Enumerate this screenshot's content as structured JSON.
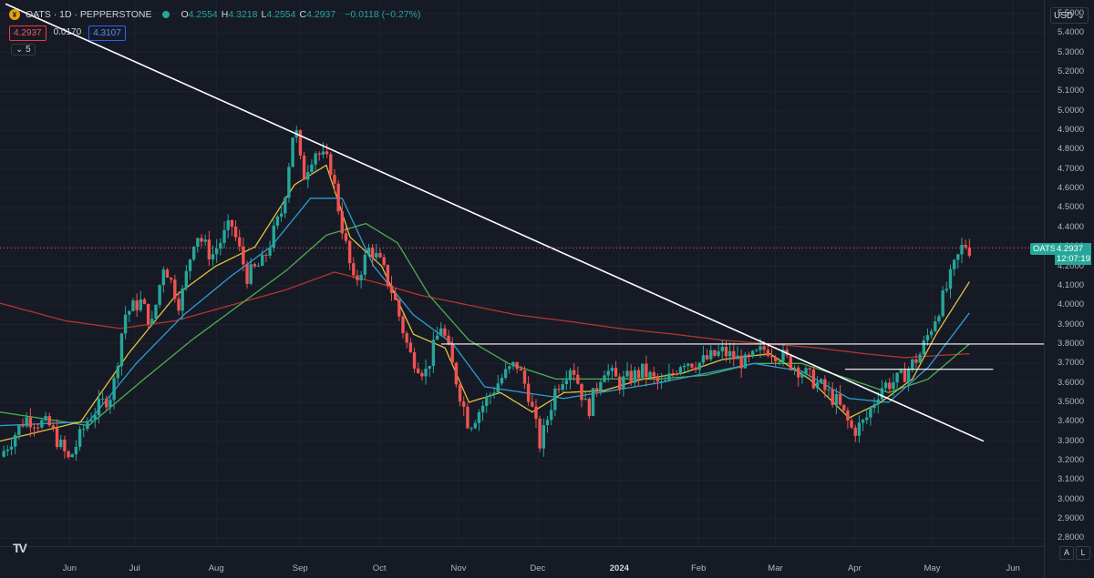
{
  "header": {
    "symbol_line": "OATS · 1D · PEPPERSTONE",
    "icon": "oats-coin-icon",
    "ohlc": [
      {
        "k": "O",
        "v": "4.2554"
      },
      {
        "k": "H",
        "v": "4.3218"
      },
      {
        "k": "L",
        "v": "4.2554"
      },
      {
        "k": "C",
        "v": "4.2937"
      }
    ],
    "change": "−0.0118 (−0.27%)",
    "bid": "4.2937",
    "spread": "0.0170",
    "ask": "4.3107",
    "indicators_collapsed_label": "5"
  },
  "currency": "USD",
  "last_price": {
    "symbol": "OATS",
    "price": "4.2937",
    "countdown": "12:07:19"
  },
  "axis_buttons": {
    "auto": "A",
    "log": "L"
  },
  "colors": {
    "background": "#161a25",
    "up": "#26a69a",
    "down": "#ef5350",
    "ma_fast": "#e3c23a",
    "ma_mid": "#2a9fd6",
    "ma_slow": "#4caf50",
    "ma_long": "#b5342f"
  },
  "chart_data": {
    "type": "candlestick",
    "title": "OATS · 1D · PEPPERSTONE",
    "y_ticks": [
      "5.5000",
      "5.4000",
      "5.3000",
      "5.2000",
      "5.1000",
      "5.0000",
      "4.9000",
      "4.8000",
      "4.7000",
      "4.6000",
      "4.5000",
      "4.4000",
      "4.3000",
      "4.2000",
      "4.1000",
      "4.0000",
      "3.9000",
      "3.8000",
      "3.7000",
      "3.6000",
      "3.5000",
      "3.4000",
      "3.3000",
      "3.2000",
      "3.1000",
      "3.0000",
      "2.9000",
      "2.8000"
    ],
    "ylim": [
      2.76,
      5.57
    ],
    "x_ticks": [
      {
        "label": "Jun",
        "t": 0.06
      },
      {
        "label": "Jul",
        "t": 0.88
      },
      {
        "label": "Aug",
        "t": 1.91
      },
      {
        "label": "Sep",
        "t": 2.97
      },
      {
        "label": "Oct",
        "t": 3.97
      },
      {
        "label": "Nov",
        "t": 4.97
      },
      {
        "label": "Dec",
        "t": 5.97
      },
      {
        "label": "2024",
        "t": 7.0,
        "bold": true
      },
      {
        "label": "Feb",
        "t": 8.0
      },
      {
        "label": "Mar",
        "t": 8.97
      },
      {
        "label": "Apr",
        "t": 9.97
      },
      {
        "label": "May",
        "t": 10.95
      },
      {
        "label": "Jun",
        "t": 11.97
      }
    ],
    "xlim": [
      -0.82,
      12.36
    ],
    "price_path": [
      [
        -0.82,
        3.22
      ],
      [
        -0.5,
        3.42
      ],
      [
        -0.2,
        3.38
      ],
      [
        0.05,
        3.2
      ],
      [
        0.3,
        3.42
      ],
      [
        0.6,
        3.55
      ],
      [
        0.75,
        3.95
      ],
      [
        0.95,
        4.02
      ],
      [
        1.1,
        3.9
      ],
      [
        1.25,
        4.22
      ],
      [
        1.45,
        4.0
      ],
      [
        1.65,
        4.38
      ],
      [
        1.85,
        4.25
      ],
      [
        2.1,
        4.42
      ],
      [
        2.3,
        4.15
      ],
      [
        2.5,
        4.22
      ],
      [
        2.75,
        4.5
      ],
      [
        2.9,
        4.95
      ],
      [
        3.0,
        4.65
      ],
      [
        3.15,
        4.8
      ],
      [
        3.35,
        4.72
      ],
      [
        3.5,
        4.4
      ],
      [
        3.65,
        4.1
      ],
      [
        3.85,
        4.3
      ],
      [
        4.0,
        4.2
      ],
      [
        4.15,
        4.05
      ],
      [
        4.35,
        3.75
      ],
      [
        4.55,
        3.65
      ],
      [
        4.75,
        3.9
      ],
      [
        4.95,
        3.6
      ],
      [
        5.1,
        3.38
      ],
      [
        5.3,
        3.5
      ],
      [
        5.5,
        3.62
      ],
      [
        5.7,
        3.7
      ],
      [
        5.85,
        3.55
      ],
      [
        6.0,
        3.28
      ],
      [
        6.2,
        3.58
      ],
      [
        6.4,
        3.7
      ],
      [
        6.6,
        3.45
      ],
      [
        6.8,
        3.68
      ],
      [
        7.0,
        3.6
      ],
      [
        7.3,
        3.66
      ],
      [
        7.55,
        3.58
      ],
      [
        7.8,
        3.72
      ],
      [
        8.0,
        3.7
      ],
      [
        8.3,
        3.76
      ],
      [
        8.6,
        3.7
      ],
      [
        8.85,
        3.78
      ],
      [
        9.05,
        3.74
      ],
      [
        9.3,
        3.66
      ],
      [
        9.55,
        3.58
      ],
      [
        9.75,
        3.5
      ],
      [
        9.95,
        3.35
      ],
      [
        10.1,
        3.4
      ],
      [
        10.3,
        3.58
      ],
      [
        10.55,
        3.62
      ],
      [
        10.8,
        3.75
      ],
      [
        10.95,
        3.9
      ],
      [
        11.1,
        4.05
      ],
      [
        11.25,
        4.22
      ],
      [
        11.35,
        4.32
      ],
      [
        11.42,
        4.29
      ]
    ],
    "moving_averages": [
      {
        "name": "fast",
        "color": "#e3c23a",
        "values": [
          [
            -0.82,
            3.3
          ],
          [
            0.2,
            3.4
          ],
          [
            0.8,
            3.75
          ],
          [
            1.4,
            4.05
          ],
          [
            1.9,
            4.2
          ],
          [
            2.4,
            4.3
          ],
          [
            2.9,
            4.62
          ],
          [
            3.3,
            4.72
          ],
          [
            3.6,
            4.35
          ],
          [
            4.0,
            4.2
          ],
          [
            4.4,
            3.85
          ],
          [
            4.8,
            3.78
          ],
          [
            5.1,
            3.5
          ],
          [
            5.5,
            3.55
          ],
          [
            5.9,
            3.45
          ],
          [
            6.3,
            3.55
          ],
          [
            6.8,
            3.56
          ],
          [
            7.3,
            3.62
          ],
          [
            7.8,
            3.65
          ],
          [
            8.3,
            3.72
          ],
          [
            8.9,
            3.75
          ],
          [
            9.4,
            3.62
          ],
          [
            9.9,
            3.42
          ],
          [
            10.3,
            3.5
          ],
          [
            10.7,
            3.62
          ],
          [
            11.0,
            3.85
          ],
          [
            11.42,
            4.12
          ]
        ]
      },
      {
        "name": "mid",
        "color": "#2a9fd6",
        "values": [
          [
            -0.82,
            3.38
          ],
          [
            0.3,
            3.4
          ],
          [
            0.9,
            3.7
          ],
          [
            1.5,
            3.95
          ],
          [
            2.1,
            4.15
          ],
          [
            2.6,
            4.3
          ],
          [
            3.1,
            4.55
          ],
          [
            3.5,
            4.55
          ],
          [
            3.9,
            4.2
          ],
          [
            4.4,
            3.95
          ],
          [
            4.9,
            3.8
          ],
          [
            5.3,
            3.58
          ],
          [
            5.8,
            3.55
          ],
          [
            6.3,
            3.52
          ],
          [
            6.9,
            3.56
          ],
          [
            7.5,
            3.6
          ],
          [
            8.1,
            3.65
          ],
          [
            8.7,
            3.7
          ],
          [
            9.3,
            3.66
          ],
          [
            9.9,
            3.52
          ],
          [
            10.4,
            3.5
          ],
          [
            10.9,
            3.68
          ],
          [
            11.42,
            3.96
          ]
        ]
      },
      {
        "name": "slow",
        "color": "#4caf50",
        "values": [
          [
            -0.82,
            3.45
          ],
          [
            0.3,
            3.38
          ],
          [
            1.0,
            3.62
          ],
          [
            1.6,
            3.82
          ],
          [
            2.2,
            4.0
          ],
          [
            2.8,
            4.18
          ],
          [
            3.3,
            4.36
          ],
          [
            3.8,
            4.42
          ],
          [
            4.2,
            4.32
          ],
          [
            4.6,
            4.05
          ],
          [
            5.1,
            3.82
          ],
          [
            5.6,
            3.7
          ],
          [
            6.2,
            3.62
          ],
          [
            6.9,
            3.62
          ],
          [
            7.5,
            3.62
          ],
          [
            8.1,
            3.64
          ],
          [
            8.7,
            3.7
          ],
          [
            9.3,
            3.7
          ],
          [
            9.9,
            3.62
          ],
          [
            10.4,
            3.55
          ],
          [
            10.9,
            3.62
          ],
          [
            11.42,
            3.8
          ]
        ]
      },
      {
        "name": "long",
        "color": "#b5342f",
        "values": [
          [
            -0.82,
            4.01
          ],
          [
            0.0,
            3.92
          ],
          [
            0.7,
            3.88
          ],
          [
            1.4,
            3.92
          ],
          [
            2.1,
            4.0
          ],
          [
            2.8,
            4.08
          ],
          [
            3.4,
            4.17
          ],
          [
            3.9,
            4.12
          ],
          [
            4.5,
            4.05
          ],
          [
            5.1,
            4.0
          ],
          [
            5.7,
            3.95
          ],
          [
            6.3,
            3.92
          ],
          [
            7.0,
            3.88
          ],
          [
            7.7,
            3.85
          ],
          [
            8.3,
            3.82
          ],
          [
            8.9,
            3.8
          ],
          [
            9.5,
            3.78
          ],
          [
            10.1,
            3.75
          ],
          [
            10.6,
            3.73
          ],
          [
            11.0,
            3.74
          ],
          [
            11.42,
            3.75
          ]
        ]
      }
    ],
    "drawings": [
      {
        "type": "trendline",
        "from": [
          -0.75,
          5.55
        ],
        "to": [
          11.6,
          3.3
        ],
        "color": "#ffffff"
      },
      {
        "type": "horizontal",
        "from": [
          4.75,
          3.8
        ],
        "to": [
          12.36,
          3.8
        ],
        "color": "#ffffff"
      },
      {
        "type": "horizontal",
        "from": [
          9.85,
          3.67
        ],
        "to": [
          11.72,
          3.67
        ],
        "color": "#ffffff"
      },
      {
        "type": "price-line",
        "value": 4.2937,
        "color": "#ef5350"
      }
    ]
  }
}
